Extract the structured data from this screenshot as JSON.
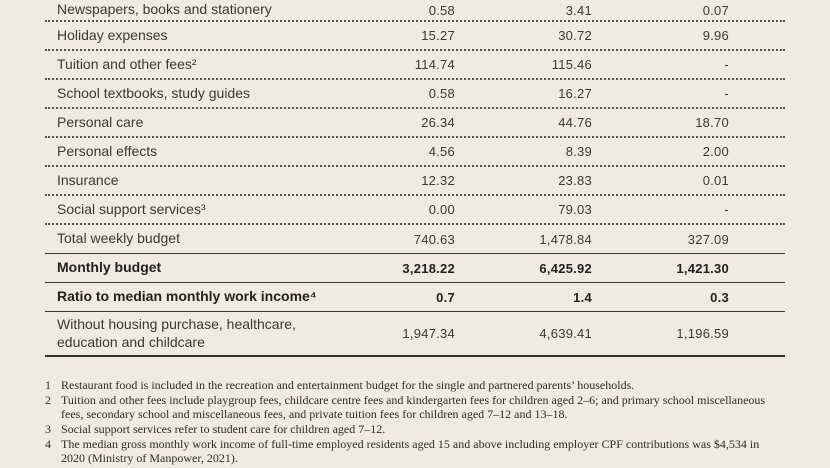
{
  "colors": {
    "page_background": "#f0ebe0",
    "text": "#3c3833",
    "bold_text": "#23211d",
    "solid_rule": "#3a362f",
    "dotted_rule": "#57534b"
  },
  "table": {
    "rows": [
      {
        "label": "Newspapers, books and stationery",
        "values": [
          "0.58",
          "3.41",
          "0.07"
        ],
        "bold": false,
        "rule": "dotted"
      },
      {
        "label": "Holiday expenses",
        "values": [
          "15.27",
          "30.72",
          "9.96"
        ],
        "bold": false,
        "rule": "dotted"
      },
      {
        "label": "Tuition and other fees²",
        "values": [
          "114.74",
          "115.46",
          "-"
        ],
        "bold": false,
        "rule": "dotted"
      },
      {
        "label": "School textbooks, study guides",
        "values": [
          "0.58",
          "16.27",
          "-"
        ],
        "bold": false,
        "rule": "dotted"
      },
      {
        "label": "Personal care",
        "values": [
          "26.34",
          "44.76",
          "18.70"
        ],
        "bold": false,
        "rule": "dotted"
      },
      {
        "label": "Personal effects",
        "values": [
          "4.56",
          "8.39",
          "2.00"
        ],
        "bold": false,
        "rule": "dotted"
      },
      {
        "label": "Insurance",
        "values": [
          "12.32",
          "23.83",
          "0.01"
        ],
        "bold": false,
        "rule": "dotted"
      },
      {
        "label": "Social support services³",
        "values": [
          "0.00",
          "79.03",
          "-"
        ],
        "bold": false,
        "rule": "dotted"
      },
      {
        "label": "Total weekly budget",
        "values": [
          "740.63",
          "1,478.84",
          "327.09"
        ],
        "bold": false,
        "rule": "solid"
      },
      {
        "label": "Monthly budget",
        "values": [
          "3,218.22",
          "6,425.92",
          "1,421.30"
        ],
        "bold": true,
        "rule": "solid"
      },
      {
        "label": "Ratio to median monthly work income⁴",
        "values": [
          "0.7",
          "1.4",
          "0.3"
        ],
        "bold": true,
        "rule": "solid"
      },
      {
        "label": "Without housing purchase, healthcare, education and childcare",
        "values": [
          "1,947.34",
          "4,639.41",
          "1,196.59"
        ],
        "bold": false,
        "rule": "thick"
      }
    ]
  },
  "footnotes": [
    {
      "num": "1",
      "text": "Restaurant food is included in the recreation and entertainment budget for the single and partnered parents’ households."
    },
    {
      "num": "2",
      "text": "Tuition and other fees include playgroup fees, childcare centre fees and kindergarten fees for children aged 2–6; and primary school miscellaneous fees, secondary school and miscellaneous fees, and private tuition fees for children aged 7–12 and 13–18."
    },
    {
      "num": "3",
      "text": "Social support services refer to student care for children aged 7–12."
    },
    {
      "num": "4",
      "text": "The median gross monthly work income of full-time employed residents aged 15 and above including employer CPF contributions was $4,534 in 2020 (Ministry of Manpower, 2021)."
    }
  ]
}
